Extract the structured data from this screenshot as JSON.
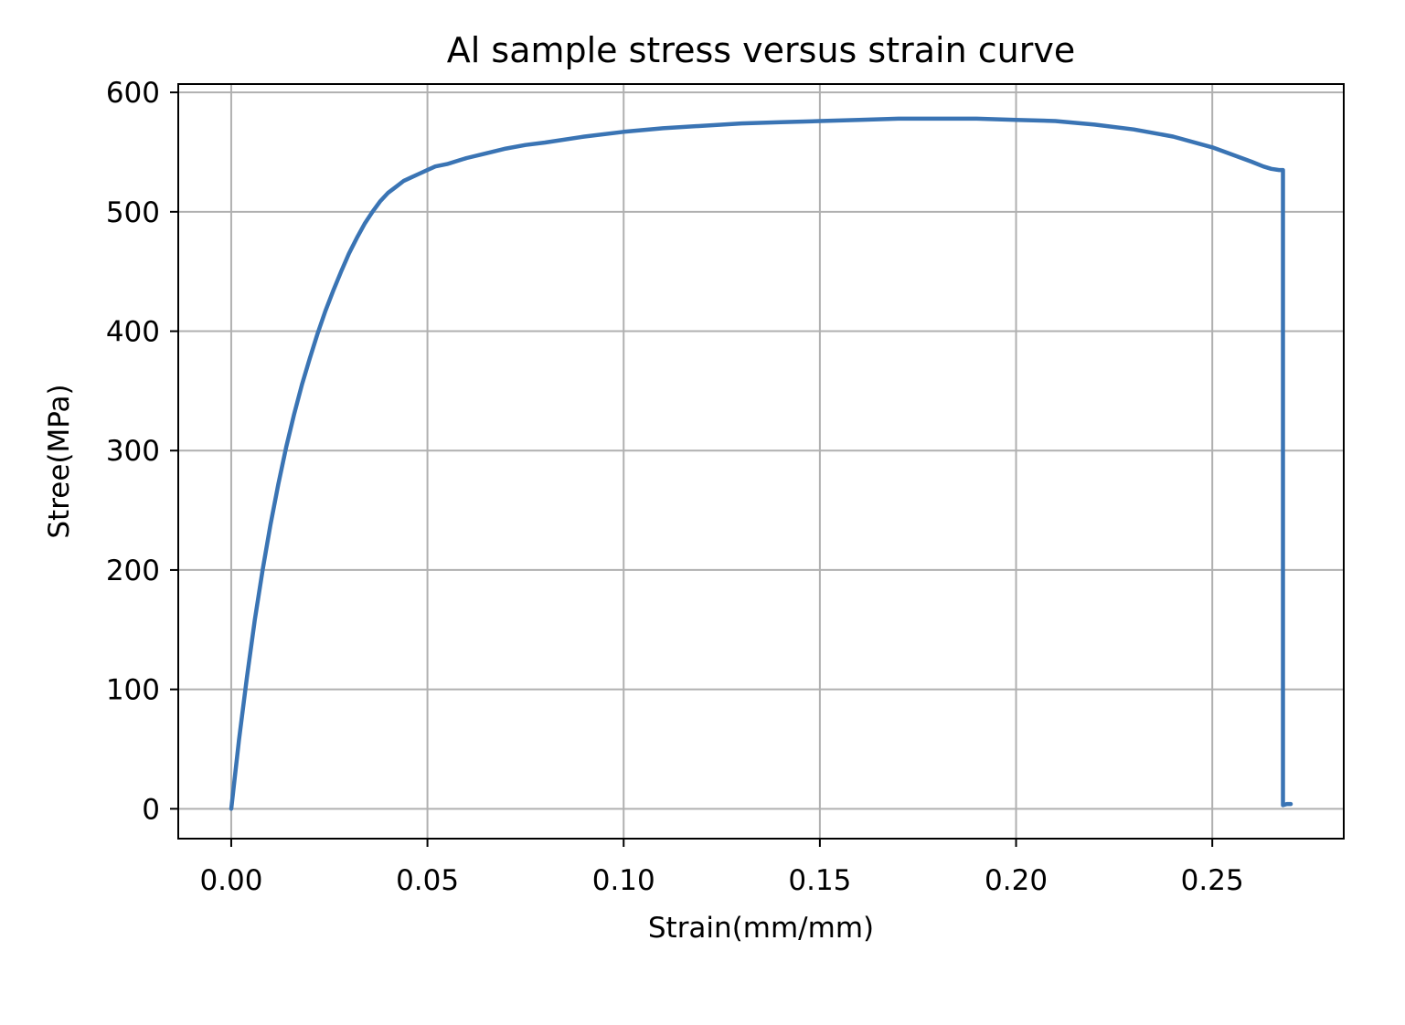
{
  "chart_data": {
    "type": "line",
    "title": "Al sample stress versus strain curve",
    "xlabel": "Strain(mm/mm)",
    "ylabel": "Stree(MPa)",
    "xlim": [
      -0.0135,
      0.2835
    ],
    "ylim": [
      -25,
      607
    ],
    "x_ticks": [
      0.0,
      0.05,
      0.1,
      0.15,
      0.2,
      0.25
    ],
    "x_tick_labels": [
      "0.00",
      "0.05",
      "0.10",
      "0.15",
      "0.20",
      "0.25"
    ],
    "y_ticks": [
      0,
      100,
      200,
      300,
      400,
      500,
      600
    ],
    "y_tick_labels": [
      "0",
      "100",
      "200",
      "300",
      "400",
      "500",
      "600"
    ],
    "grid": true,
    "legend": "none",
    "series": [
      {
        "color": "#3a74b4",
        "x": [
          0.0,
          0.002,
          0.004,
          0.006,
          0.008,
          0.01,
          0.012,
          0.014,
          0.016,
          0.018,
          0.02,
          0.022,
          0.024,
          0.026,
          0.028,
          0.03,
          0.032,
          0.034,
          0.036,
          0.038,
          0.04,
          0.042,
          0.044,
          0.046,
          0.048,
          0.05,
          0.052,
          0.055,
          0.058,
          0.06,
          0.065,
          0.07,
          0.075,
          0.08,
          0.09,
          0.1,
          0.11,
          0.12,
          0.13,
          0.14,
          0.15,
          0.16,
          0.17,
          0.18,
          0.19,
          0.2,
          0.21,
          0.22,
          0.23,
          0.24,
          0.25,
          0.255,
          0.26,
          0.263,
          0.265,
          0.267,
          0.268,
          0.268,
          0.268,
          0.269,
          0.27
        ],
        "y": [
          0,
          58,
          110,
          158,
          200,
          238,
          272,
          303,
          330,
          355,
          377,
          398,
          417,
          434,
          450,
          465,
          478,
          490,
          500,
          509,
          516,
          521,
          526,
          529,
          532,
          535,
          538,
          540,
          543,
          545,
          549,
          553,
          556,
          558,
          563,
          567,
          570,
          572,
          574,
          575,
          576,
          577,
          578,
          578,
          578,
          577,
          576,
          573,
          569,
          563,
          554,
          548,
          542,
          538,
          536,
          535,
          535,
          3,
          3,
          4,
          4
        ]
      }
    ]
  }
}
